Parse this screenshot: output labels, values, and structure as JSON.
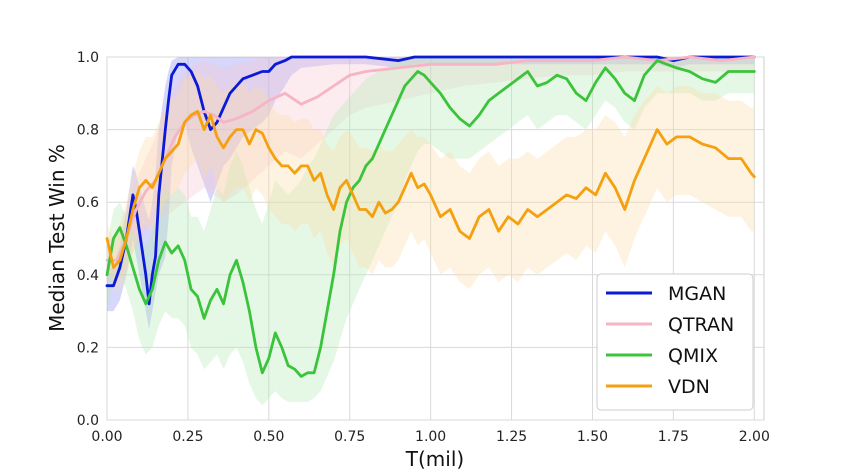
{
  "chart_data": {
    "type": "line",
    "title": "",
    "xlabel": "T(mil)",
    "ylabel": "Median Test Win %",
    "xlim": [
      0,
      2.03
    ],
    "ylim": [
      0,
      1.0
    ],
    "xticks": [
      "0.00",
      "0.25",
      "0.50",
      "0.75",
      "1.00",
      "1.25",
      "1.50",
      "1.75",
      "2.00"
    ],
    "yticks": [
      "0.0",
      "0.2",
      "0.4",
      "0.6",
      "0.8",
      "1.0"
    ],
    "grid": true,
    "legend_position": "bottom-right",
    "series": [
      {
        "name": "MGAN",
        "color": "#0a1ad6",
        "band_color": "#8a8cf0",
        "x": [
          0.0,
          0.02,
          0.04,
          0.06,
          0.08,
          0.09,
          0.1,
          0.12,
          0.13,
          0.14,
          0.15,
          0.16,
          0.18,
          0.19,
          0.2,
          0.22,
          0.24,
          0.26,
          0.28,
          0.3,
          0.32,
          0.34,
          0.36,
          0.38,
          0.4,
          0.42,
          0.45,
          0.48,
          0.5,
          0.52,
          0.55,
          0.57,
          0.6,
          0.7,
          0.8,
          0.9,
          0.95,
          1.0,
          1.1,
          1.2,
          1.3,
          1.4,
          1.5,
          1.6,
          1.7,
          1.75,
          1.8,
          1.9,
          2.0
        ],
        "values": [
          0.37,
          0.37,
          0.42,
          0.5,
          0.62,
          0.58,
          0.52,
          0.4,
          0.32,
          0.4,
          0.45,
          0.62,
          0.8,
          0.88,
          0.95,
          0.98,
          0.98,
          0.96,
          0.92,
          0.85,
          0.8,
          0.82,
          0.86,
          0.9,
          0.92,
          0.94,
          0.95,
          0.96,
          0.96,
          0.98,
          0.99,
          1.0,
          1.0,
          1.0,
          1.0,
          0.99,
          1.0,
          1.0,
          1.0,
          1.0,
          1.0,
          1.0,
          1.0,
          1.0,
          1.0,
          0.99,
          1.0,
          1.0,
          1.0
        ],
        "band_upper": [
          0.42,
          0.42,
          0.48,
          0.58,
          0.7,
          0.68,
          0.64,
          0.58,
          0.55,
          0.6,
          0.68,
          0.8,
          0.92,
          0.96,
          0.99,
          1.0,
          1.0,
          1.0,
          1.0,
          1.0,
          1.0,
          1.0,
          1.0,
          1.0,
          1.0,
          1.0,
          1.0,
          1.0,
          1.0,
          1.0,
          1.0,
          1.0,
          1.0,
          1.0,
          1.0,
          1.0,
          1.0,
          1.0,
          1.0,
          1.0,
          1.0,
          1.0,
          1.0,
          1.0,
          1.0,
          1.0,
          1.0,
          1.0,
          1.0
        ],
        "band_lower": [
          0.3,
          0.3,
          0.33,
          0.4,
          0.5,
          0.45,
          0.4,
          0.3,
          0.25,
          0.3,
          0.35,
          0.4,
          0.45,
          0.55,
          0.7,
          0.8,
          0.82,
          0.75,
          0.7,
          0.65,
          0.6,
          0.65,
          0.7,
          0.72,
          0.75,
          0.78,
          0.8,
          0.82,
          0.84,
          0.88,
          0.92,
          0.95,
          0.97,
          0.98,
          0.98,
          0.97,
          0.98,
          0.98,
          0.98,
          0.98,
          0.98,
          0.98,
          0.98,
          0.98,
          0.98,
          0.97,
          0.98,
          0.98,
          0.98
        ]
      },
      {
        "name": "QTRAN",
        "color": "#f7b4c4",
        "band_color": "#f7c6d2",
        "x": [
          0.0,
          0.03,
          0.06,
          0.09,
          0.12,
          0.15,
          0.18,
          0.21,
          0.24,
          0.27,
          0.3,
          0.33,
          0.36,
          0.4,
          0.45,
          0.5,
          0.55,
          0.6,
          0.65,
          0.7,
          0.75,
          0.8,
          0.9,
          1.0,
          1.1,
          1.2,
          1.3,
          1.4,
          1.5,
          1.6,
          1.7,
          1.8,
          1.9,
          2.0
        ],
        "values": [
          0.44,
          0.44,
          0.5,
          0.58,
          0.63,
          0.66,
          0.72,
          0.78,
          0.82,
          0.84,
          0.85,
          0.84,
          0.82,
          0.83,
          0.85,
          0.88,
          0.9,
          0.87,
          0.89,
          0.92,
          0.95,
          0.96,
          0.97,
          0.98,
          0.98,
          0.98,
          0.99,
          0.99,
          0.99,
          1.0,
          0.99,
          1.0,
          0.99,
          1.0
        ],
        "band_upper": [
          0.5,
          0.5,
          0.58,
          0.66,
          0.72,
          0.78,
          0.86,
          0.92,
          0.96,
          0.98,
          0.99,
          0.98,
          0.97,
          0.98,
          0.99,
          1.0,
          1.0,
          1.0,
          1.0,
          1.0,
          1.0,
          1.0,
          1.0,
          1.0,
          1.0,
          1.0,
          1.0,
          1.0,
          1.0,
          1.0,
          1.0,
          1.0,
          1.0,
          1.0
        ],
        "band_lower": [
          0.38,
          0.38,
          0.42,
          0.48,
          0.52,
          0.55,
          0.56,
          0.58,
          0.6,
          0.62,
          0.64,
          0.62,
          0.6,
          0.62,
          0.66,
          0.7,
          0.74,
          0.72,
          0.76,
          0.8,
          0.84,
          0.86,
          0.88,
          0.9,
          0.92,
          0.93,
          0.94,
          0.95,
          0.95,
          0.96,
          0.96,
          0.96,
          0.96,
          0.96
        ]
      },
      {
        "name": "QMIX",
        "color": "#3bc43b",
        "band_color": "#b4eab4",
        "x": [
          0.0,
          0.02,
          0.04,
          0.06,
          0.08,
          0.1,
          0.12,
          0.14,
          0.16,
          0.18,
          0.2,
          0.22,
          0.24,
          0.26,
          0.28,
          0.3,
          0.32,
          0.34,
          0.36,
          0.38,
          0.4,
          0.42,
          0.44,
          0.46,
          0.48,
          0.5,
          0.52,
          0.54,
          0.56,
          0.58,
          0.6,
          0.62,
          0.64,
          0.66,
          0.68,
          0.7,
          0.72,
          0.74,
          0.76,
          0.78,
          0.8,
          0.82,
          0.84,
          0.86,
          0.88,
          0.9,
          0.92,
          0.94,
          0.96,
          0.98,
          1.0,
          1.03,
          1.06,
          1.09,
          1.12,
          1.15,
          1.18,
          1.21,
          1.24,
          1.27,
          1.3,
          1.33,
          1.36,
          1.39,
          1.42,
          1.45,
          1.48,
          1.51,
          1.54,
          1.57,
          1.6,
          1.63,
          1.66,
          1.7,
          1.73,
          1.76,
          1.8,
          1.84,
          1.88,
          1.92,
          1.96,
          2.0
        ],
        "values": [
          0.4,
          0.5,
          0.53,
          0.48,
          0.42,
          0.36,
          0.32,
          0.36,
          0.44,
          0.49,
          0.46,
          0.48,
          0.44,
          0.36,
          0.34,
          0.28,
          0.33,
          0.36,
          0.32,
          0.4,
          0.44,
          0.38,
          0.3,
          0.2,
          0.13,
          0.17,
          0.24,
          0.2,
          0.15,
          0.14,
          0.12,
          0.13,
          0.13,
          0.2,
          0.3,
          0.4,
          0.52,
          0.6,
          0.64,
          0.66,
          0.7,
          0.72,
          0.76,
          0.8,
          0.84,
          0.88,
          0.92,
          0.94,
          0.96,
          0.95,
          0.93,
          0.9,
          0.86,
          0.83,
          0.81,
          0.84,
          0.88,
          0.9,
          0.92,
          0.94,
          0.96,
          0.92,
          0.93,
          0.95,
          0.94,
          0.9,
          0.88,
          0.93,
          0.97,
          0.94,
          0.9,
          0.88,
          0.95,
          0.99,
          0.98,
          0.97,
          0.96,
          0.94,
          0.93,
          0.96,
          0.96,
          0.96
        ],
        "band_upper": [
          0.48,
          0.58,
          0.6,
          0.56,
          0.52,
          0.48,
          0.48,
          0.52,
          0.6,
          0.64,
          0.62,
          0.64,
          0.62,
          0.56,
          0.56,
          0.52,
          0.58,
          0.64,
          0.62,
          0.7,
          0.74,
          0.7,
          0.64,
          0.58,
          0.54,
          0.6,
          0.66,
          0.64,
          0.62,
          0.64,
          0.66,
          0.7,
          0.72,
          0.76,
          0.8,
          0.84,
          0.86,
          0.88,
          0.9,
          0.92,
          0.94,
          0.95,
          0.96,
          0.97,
          0.98,
          0.99,
          1.0,
          1.0,
          1.0,
          1.0,
          1.0,
          1.0,
          1.0,
          1.0,
          1.0,
          1.0,
          1.0,
          1.0,
          1.0,
          1.0,
          1.0,
          1.0,
          1.0,
          1.0,
          1.0,
          1.0,
          1.0,
          1.0,
          1.0,
          1.0,
          1.0,
          1.0,
          1.0,
          1.0,
          1.0,
          1.0,
          1.0,
          1.0,
          1.0,
          1.0,
          1.0,
          1.0
        ],
        "band_lower": [
          0.3,
          0.38,
          0.4,
          0.36,
          0.3,
          0.22,
          0.18,
          0.2,
          0.26,
          0.3,
          0.28,
          0.28,
          0.26,
          0.2,
          0.18,
          0.14,
          0.16,
          0.18,
          0.14,
          0.18,
          0.2,
          0.16,
          0.1,
          0.06,
          0.04,
          0.06,
          0.08,
          0.06,
          0.05,
          0.05,
          0.05,
          0.05,
          0.06,
          0.08,
          0.12,
          0.16,
          0.22,
          0.28,
          0.32,
          0.36,
          0.4,
          0.44,
          0.48,
          0.52,
          0.56,
          0.6,
          0.66,
          0.7,
          0.74,
          0.76,
          0.76,
          0.74,
          0.72,
          0.72,
          0.72,
          0.74,
          0.76,
          0.78,
          0.8,
          0.82,
          0.84,
          0.8,
          0.82,
          0.84,
          0.84,
          0.82,
          0.8,
          0.84,
          0.88,
          0.86,
          0.82,
          0.8,
          0.86,
          0.9,
          0.9,
          0.9,
          0.9,
          0.88,
          0.88,
          0.9,
          0.9,
          0.9
        ]
      },
      {
        "name": "VDN",
        "color": "#f5a00f",
        "band_color": "#fbdcaa",
        "x": [
          0.0,
          0.02,
          0.04,
          0.06,
          0.08,
          0.1,
          0.12,
          0.14,
          0.16,
          0.18,
          0.2,
          0.22,
          0.24,
          0.26,
          0.28,
          0.3,
          0.32,
          0.34,
          0.36,
          0.38,
          0.4,
          0.42,
          0.44,
          0.46,
          0.48,
          0.5,
          0.52,
          0.54,
          0.56,
          0.58,
          0.6,
          0.62,
          0.64,
          0.66,
          0.68,
          0.7,
          0.72,
          0.74,
          0.76,
          0.78,
          0.8,
          0.82,
          0.84,
          0.86,
          0.88,
          0.9,
          0.92,
          0.94,
          0.96,
          0.98,
          1.0,
          1.03,
          1.06,
          1.09,
          1.12,
          1.15,
          1.18,
          1.21,
          1.24,
          1.27,
          1.3,
          1.33,
          1.36,
          1.39,
          1.42,
          1.45,
          1.48,
          1.51,
          1.54,
          1.57,
          1.6,
          1.63,
          1.66,
          1.7,
          1.73,
          1.76,
          1.8,
          1.84,
          1.88,
          1.92,
          1.96,
          1.99,
          2.0
        ],
        "values": [
          0.5,
          0.42,
          0.44,
          0.5,
          0.58,
          0.64,
          0.66,
          0.64,
          0.68,
          0.72,
          0.74,
          0.76,
          0.82,
          0.84,
          0.85,
          0.8,
          0.84,
          0.78,
          0.75,
          0.78,
          0.8,
          0.8,
          0.76,
          0.8,
          0.79,
          0.75,
          0.72,
          0.7,
          0.7,
          0.68,
          0.7,
          0.7,
          0.66,
          0.68,
          0.62,
          0.58,
          0.64,
          0.66,
          0.62,
          0.58,
          0.58,
          0.56,
          0.6,
          0.57,
          0.58,
          0.6,
          0.64,
          0.68,
          0.64,
          0.65,
          0.62,
          0.56,
          0.58,
          0.52,
          0.5,
          0.56,
          0.58,
          0.52,
          0.56,
          0.54,
          0.58,
          0.56,
          0.58,
          0.6,
          0.62,
          0.61,
          0.64,
          0.62,
          0.68,
          0.64,
          0.58,
          0.66,
          0.72,
          0.8,
          0.76,
          0.78,
          0.78,
          0.76,
          0.75,
          0.72,
          0.72,
          0.68,
          0.67
        ],
        "band_upper": [
          0.54,
          0.5,
          0.54,
          0.6,
          0.68,
          0.74,
          0.78,
          0.78,
          0.82,
          0.86,
          0.88,
          0.9,
          0.94,
          0.95,
          0.96,
          0.94,
          0.95,
          0.92,
          0.9,
          0.92,
          0.93,
          0.93,
          0.9,
          0.92,
          0.91,
          0.88,
          0.85,
          0.84,
          0.84,
          0.82,
          0.83,
          0.83,
          0.8,
          0.8,
          0.76,
          0.74,
          0.78,
          0.8,
          0.78,
          0.75,
          0.75,
          0.74,
          0.76,
          0.74,
          0.74,
          0.76,
          0.78,
          0.8,
          0.78,
          0.78,
          0.76,
          0.72,
          0.74,
          0.7,
          0.68,
          0.72,
          0.74,
          0.7,
          0.72,
          0.72,
          0.74,
          0.72,
          0.74,
          0.76,
          0.78,
          0.78,
          0.8,
          0.8,
          0.84,
          0.82,
          0.78,
          0.84,
          0.88,
          0.92,
          0.9,
          0.92,
          0.92,
          0.9,
          0.9,
          0.88,
          0.88,
          0.86,
          0.86
        ],
        "band_lower": [
          0.44,
          0.36,
          0.36,
          0.4,
          0.46,
          0.52,
          0.54,
          0.52,
          0.56,
          0.6,
          0.62,
          0.64,
          0.68,
          0.7,
          0.72,
          0.66,
          0.7,
          0.64,
          0.6,
          0.62,
          0.64,
          0.64,
          0.6,
          0.64,
          0.62,
          0.58,
          0.56,
          0.54,
          0.54,
          0.52,
          0.54,
          0.54,
          0.5,
          0.52,
          0.46,
          0.42,
          0.48,
          0.5,
          0.46,
          0.42,
          0.42,
          0.4,
          0.44,
          0.42,
          0.42,
          0.44,
          0.48,
          0.52,
          0.48,
          0.5,
          0.46,
          0.4,
          0.42,
          0.38,
          0.36,
          0.4,
          0.42,
          0.38,
          0.4,
          0.38,
          0.42,
          0.4,
          0.42,
          0.44,
          0.46,
          0.44,
          0.48,
          0.46,
          0.52,
          0.48,
          0.42,
          0.5,
          0.56,
          0.64,
          0.6,
          0.62,
          0.62,
          0.6,
          0.58,
          0.56,
          0.56,
          0.52,
          0.52
        ]
      }
    ]
  }
}
